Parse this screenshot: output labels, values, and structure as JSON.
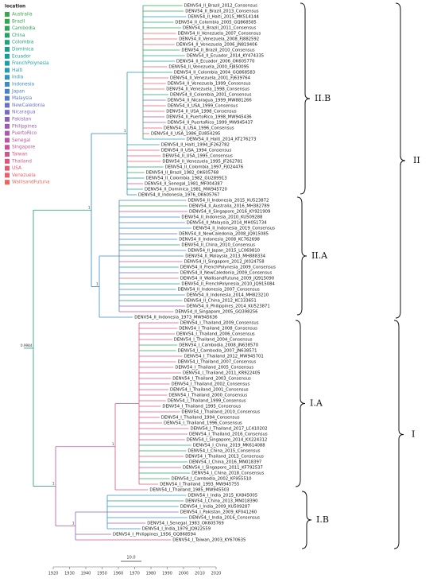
{
  "legend": {
    "title": "location",
    "items": [
      {
        "name": "Australia",
        "color": "#3aa84a"
      },
      {
        "name": "Brazil",
        "color": "#35a650"
      },
      {
        "name": "Cambodia",
        "color": "#2fa45a"
      },
      {
        "name": "China",
        "color": "#27a266"
      },
      {
        "name": "Colombia",
        "color": "#1ea27a"
      },
      {
        "name": "Dominica",
        "color": "#17a18a"
      },
      {
        "name": "Ecuador",
        "color": "#16a09a"
      },
      {
        "name": "FrenchPolynesia",
        "color": "#1a9fa8"
      },
      {
        "name": "Haiti",
        "color": "#249cb5"
      },
      {
        "name": "India",
        "color": "#3096bf"
      },
      {
        "name": "Indonesia",
        "color": "#3a8dc4"
      },
      {
        "name": "Japan",
        "color": "#4784c6"
      },
      {
        "name": "Malaysia",
        "color": "#577bc6"
      },
      {
        "name": "NewCaledonia",
        "color": "#6873c4"
      },
      {
        "name": "Nicaragua",
        "color": "#7a6bbf"
      },
      {
        "name": "Pakistan",
        "color": "#8b64b9"
      },
      {
        "name": "Philippines",
        "color": "#9c5db2"
      },
      {
        "name": "PuertoRico",
        "color": "#ad58aa"
      },
      {
        "name": "Senegal",
        "color": "#bc54a0"
      },
      {
        "name": "Singapore",
        "color": "#c95295"
      },
      {
        "name": "Taiwan",
        "color": "#d4528a"
      },
      {
        "name": "Thailand",
        "color": "#dc557f"
      },
      {
        "name": "USA",
        "color": "#e25a74"
      },
      {
        "name": "Venezuela",
        "color": "#e6616a"
      },
      {
        "name": "WallisandFutuna",
        "color": "#e86960"
      }
    ]
  },
  "tips": [
    "DENV54_II_Brazil_2012_Consensus",
    "DENV54_II_Brazil_2013_Consensus",
    "DENV54_II_Haiti_2015_MK514144",
    "DENV54_II_Colombia_2005_GQ868585",
    "DENV54_II_Brazil_2011_Consensus",
    "DENV54_II_Venezuela_2007_Consensus",
    "DENV54_II_Venezuela_2008_FJ882592",
    "DENV54_II_Venezuela_2006_JN819406",
    "DENV54_II_Brazil_2010_Consensus",
    "DENV54_II_Ecuador_2014_KY474335",
    "DENV54_II_Ecuador_2006_OK605770",
    "DENV54_II_Venezuela_2000_FJ850095",
    "DENV54_II_Colombia_2004_GQ868583",
    "DENV54_II_Venezuela_2001_FJ639764",
    "DENV54_II_Venezuela_1999_Consensus",
    "DENV54_II_Venezuela_1998_Consensus",
    "DENV54_II_Colombia_2001_Consensus",
    "DENV54_II_Nicaragua_1999_MW881266",
    "DENV54_II_USA_1999_Consensus",
    "DENV54_II_USA_1998_Consensus",
    "DENV54_II_PuertoRico_1998_MW945436",
    "DENV54_II_PuertoRico_1999_MW945437",
    "DENV54_II_USA_1996_Consensus",
    "DENV54_II_USA_1986_EU854295",
    "DENV54_II_Haiti_2014_KT276273",
    "DENV54_II_Haiti_1994_JF262782",
    "DENV54_II_USA_1994_Consensus",
    "DENV54_II_USA_1995_Consensus",
    "DENV54_II_Venezuela_1995_JF262781",
    "DENV54_II_Colombia_1997_FJ024476",
    "DENV54_II_Brazil_1982_OK605768",
    "DENV54_II_Colombia_1982_GU289913",
    "DENV54_II_Senegal_1981_MF004387",
    "DENV54_II_Dominica_1981_MW945720",
    "DENV54_II_Indonesia_1976_OK605767",
    "DENV54_II_Indonesia_2015_KU523872",
    "DENV54_II_Australia_2016_MH382789",
    "DENV54_II_Singapore_2016_KY921909",
    "DENV54_II_Indonesia_2010_KU509288",
    "DENV54_II_Malaysia_2014_MH051734",
    "DENV54_II_Indonesia_2019_Consensus",
    "DENV54_II_NewCaledonia_2008_JQ915085",
    "DENV54_II_Indonesia_2008_KC762698",
    "DENV54_II_China_2010_Consensus",
    "DENV54_II_Japan_2015_LC069810",
    "DENV54_II_Malaysia_2013_MH888334",
    "DENV54_II_Singapore_2012_JX024758",
    "DENV54_II_FrenchPolynesia_2009_Consensus",
    "DENV54_II_NewCaledonia_2009_Consensus",
    "DENV54_II_WallisandFutuna_2009_JQ915090",
    "DENV54_II_FrenchPolynesia_2010_JQ915084",
    "DENV54_II_Indonesia_2007_Consensus",
    "DENV54_II_Indonesia_2014_MH823210",
    "DENV54_II_China_2012_KC333651",
    "DENV54_II_Philippines_2014_KU523871",
    "DENV54_II_Singapore_2005_GQ398256",
    "DENV54_II_Indonesia_1973_MW945636",
    "DENV54_I_Thailand_2009_Consensus",
    "DENV54_I_Thailand_2008_Consensus",
    "DENV54_I_Thailand_2006_Consensus",
    "DENV54_I_Thailand_2004_Consensus",
    "DENV54_I_Cambodia_2008_JN638570",
    "DENV54_I_Cambodia_2007_JN638571",
    "DENV54_I_Thailand_2012_MW945701",
    "DENV54_I_Thailand_2007_Consensus",
    "DENV54_I_Thailand_2005_Consensus",
    "DENV54_I_Thailand_2011_KR922405",
    "DENV54_I_Thailand_2003_Consensus",
    "DENV54_I_Thailand_2002_Consensus",
    "DENV54_I_Thailand_2001_Consensus",
    "DENV54_I_Thailand_2000_Consensus",
    "DENV54_I_Thailand_1999_Consensus",
    "DENV54_I_Thailand_1995_Consensus",
    "DENV54_I_Thailand_2010_Consensus",
    "DENV54_I_Thailand_1994_Consensus",
    "DENV54_I_Thailand_1996_Consensus",
    "DENV54_I_Thailand_2017_LC410202",
    "DENV54_I_Thailand_2016_Consensus",
    "DENV54_I_Singapore_2014_KX224312",
    "DENV54_I_China_2019_MK614088",
    "DENV54_I_China_2015_Consensus",
    "DENV54_I_Thailand_2013_Consensus",
    "DENV54_I_China_2016_MN018397",
    "DENV54_I_Singapore_2011_KF792537",
    "DENV54_I_China_2018_Consensus",
    "DENV54_I_Cambodia_2002_KF955510",
    "DENV54_I_Thailand_1993_MW945755",
    "DENV54_I_Thailand_1985_MW945503",
    "DENV54_I_India_2015_KX845005",
    "DENV54_I_China_2013_MN018390",
    "DENV54_I_India_2009_KU509287",
    "DENV54_I_Pakistan_2009_KF041260",
    "DENV54_I_India_2016_Consensus",
    "DENV54_I_Senegal_1983_OK605769",
    "DENV54_I_India_1979_JQ922559",
    "DENV54_I_Philippines_1956_GQ868594",
    "DENV54_I_Taiwan_2003_KY670635"
  ],
  "clades": [
    "II.B",
    "II",
    "II.A",
    "I.A",
    "I",
    "I.B"
  ],
  "support": [
    0.9984,
    1,
    1,
    1,
    1,
    1,
    1
  ],
  "axis": {
    "ticks": [
      1920,
      1930,
      1940,
      1950,
      1960,
      1970,
      1980,
      1990,
      2000,
      2010,
      2020
    ]
  },
  "scale_bar": "10.0"
}
